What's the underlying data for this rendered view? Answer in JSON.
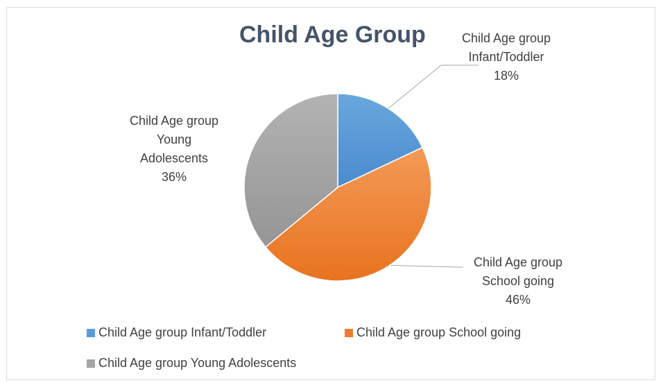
{
  "chart_data": {
    "type": "pie",
    "title": "Child Age Group",
    "categories": [
      "Child Age group Infant/Toddler",
      "Child Age group School going",
      "Child Age group Young Adolescents"
    ],
    "values": [
      18,
      46,
      36
    ],
    "value_unit": "%",
    "colors": [
      "#5b9bd5",
      "#ed7d31",
      "#a5a5a5"
    ],
    "data_labels": [
      {
        "lines": [
          "Child Age group",
          "Infant/Toddler",
          "18%"
        ]
      },
      {
        "lines": [
          "Child Age group",
          "School going",
          "46%"
        ]
      },
      {
        "lines": [
          "Child Age group",
          "Young",
          "Adolescents",
          "36%"
        ]
      }
    ],
    "legend": {
      "placement": "bottom",
      "entries": [
        "Child Age group Infant/Toddler",
        "Child Age group School going",
        "Child Age group Young Adolescents"
      ]
    }
  }
}
